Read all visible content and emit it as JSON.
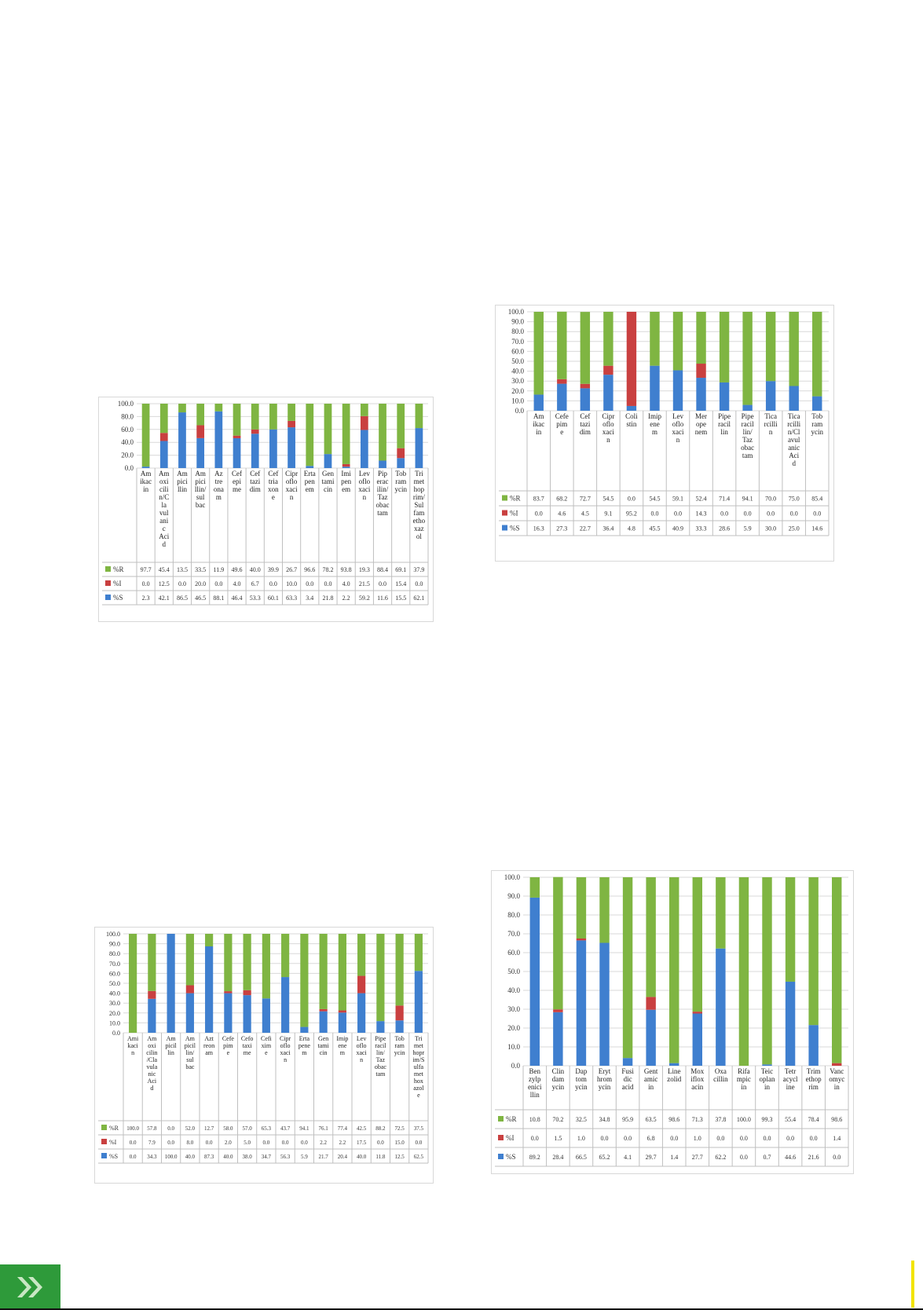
{
  "charts": [
    {
      "id": "c1",
      "yticks": [
        "0.0",
        "20.0",
        "40.0",
        "60.0",
        "80.0",
        "100.0"
      ],
      "categories": [
        "Am\nikac\nin",
        "Am\noxi\ncili\nn/C\nla\nvul\nani\nc\nAci\nd",
        "Am\npici\nllin",
        "Am\npici\nllin/\nsul\nbac",
        "Az\ntre\nona\nm",
        "Cef\nepi\nme",
        "Cef\ntazi\ndim",
        "Cef\ntria\nxon\ne",
        "Cipr\noflo\nxaci\nn",
        "Erta\npen\nem",
        "Gen\ntami\ncin",
        "Imi\npen\nem",
        "Lev\noflo\nxaci\nn",
        "Pip\nerac\nilin/\nTaz\nobac\ntam",
        "Tob\nram\nycin",
        "Tri\nmet\nhop\nrim/\nSul\nfam\netho\nxaz\nol"
      ],
      "series": [
        {
          "name": "%S",
          "color": "#3f7fcf",
          "values": [
            2.3,
            42.1,
            86.5,
            46.5,
            88.1,
            46.4,
            53.3,
            60.1,
            63.3,
            3.4,
            21.8,
            2.2,
            59.2,
            11.6,
            15.5,
            62.1
          ]
        },
        {
          "name": "%I",
          "color": "#c94040",
          "values": [
            0.0,
            12.5,
            0.0,
            20.0,
            0.0,
            4.0,
            6.7,
            0.0,
            10.0,
            0.0,
            0.0,
            4.0,
            21.5,
            0.0,
            15.4,
            0.0
          ]
        },
        {
          "name": "%R",
          "color": "#7fb542",
          "values": [
            97.7,
            45.4,
            13.5,
            33.5,
            11.9,
            49.6,
            40.0,
            39.9,
            26.7,
            96.6,
            78.2,
            93.8,
            19.3,
            88.4,
            69.1,
            37.9
          ]
        }
      ],
      "table_rows": [
        {
          "label": "%R",
          "values": [
            "97.7",
            "45.4",
            "13.5",
            "33.5",
            "11.9",
            "49.6",
            "40.0",
            "39.9",
            "26.7",
            "96.6",
            "78.2",
            "93.8",
            "19.3",
            "88.4",
            "69.1",
            "37.9"
          ]
        },
        {
          "label": "%I",
          "values": [
            "0.0",
            "12.5",
            "0.0",
            "20.0",
            "0.0",
            "4.0",
            "6.7",
            "0.0",
            "10.0",
            "0.0",
            "0.0",
            "4.0",
            "21.5",
            "0.0",
            "15.4",
            "0.0"
          ]
        },
        {
          "label": "%S",
          "values": [
            "2.3",
            "42.1",
            "86.5",
            "46.5",
            "88.1",
            "46.4",
            "53.3",
            "60.1",
            "63.3",
            "3.4",
            "21.8",
            "2.2",
            "59.2",
            "11.6",
            "15.5",
            "62.1"
          ]
        }
      ]
    },
    {
      "id": "c2",
      "yticks": [
        "0.0",
        "10.0",
        "20.0",
        "30.0",
        "40.0",
        "50.0",
        "60.0",
        "70.0",
        "80.0",
        "90.0",
        "100.0"
      ],
      "categories": [
        "Am\nikac\nin",
        "Cefe\npim\ne",
        "Cef\ntazi\ndim",
        "Cipr\noflo\nxaci\nn",
        "Coli\nstin",
        "Imip\nene\nm",
        "Lev\noflo\nxaci\nn",
        "Mer\nope\nnem",
        "Pipe\nracil\nlin",
        "Pipe\nracil\nlin/\nTaz\nobac\ntam",
        "Tica\nrcilli\nn",
        "Tica\nrcilli\nn/Cl\navul\nanic\nAci\nd",
        "Tob\nram\nycin"
      ],
      "series": [
        {
          "name": "%S",
          "color": "#3f7fcf",
          "values": [
            16.3,
            27.3,
            22.7,
            36.4,
            4.8,
            45.5,
            40.9,
            33.3,
            28.6,
            5.9,
            30.0,
            25.0,
            14.6
          ]
        },
        {
          "name": "%I",
          "color": "#c94040",
          "values": [
            0.0,
            4.6,
            4.5,
            9.1,
            95.2,
            0.0,
            0.0,
            14.3,
            0.0,
            0.0,
            0.0,
            0.0,
            0.0
          ]
        },
        {
          "name": "%R",
          "color": "#7fb542",
          "values": [
            83.7,
            68.2,
            72.7,
            54.5,
            0.0,
            54.5,
            59.1,
            52.4,
            71.4,
            94.1,
            70.0,
            75.0,
            85.4
          ]
        }
      ],
      "table_rows": [
        {
          "label": "%R",
          "values": [
            "83.7",
            "68.2",
            "72.7",
            "54.5",
            "0.0",
            "54.5",
            "59.1",
            "52.4",
            "71.4",
            "94.1",
            "70.0",
            "75.0",
            "85.4"
          ]
        },
        {
          "label": "%I",
          "values": [
            "0.0",
            "4.6",
            "4.5",
            "9.1",
            "95.2",
            "0.0",
            "0.0",
            "14.3",
            "0.0",
            "0.0",
            "0.0",
            "0.0",
            "0.0"
          ]
        },
        {
          "label": "%S",
          "values": [
            "16.3",
            "27.3",
            "22.7",
            "36.4",
            "4.8",
            "45.5",
            "40.9",
            "33.3",
            "28.6",
            "5.9",
            "30.0",
            "25.0",
            "14.6"
          ]
        }
      ]
    },
    {
      "id": "c3",
      "yticks": [
        "0.0",
        "10.0",
        "20.0",
        "30.0",
        "40.0",
        "50.0",
        "60.0",
        "70.0",
        "80.0",
        "90.0",
        "100.0"
      ],
      "categories": [
        "Ami\nkaci\nn",
        "Am\noxi\ncilin\n/Cla\nvula\nnic\nAci\nd",
        "Am\npicil\nlin",
        "Am\npicil\nlin/\nsul\nbac",
        "Azt\nreon\nam",
        "Cefe\npim\ne",
        "Cefo\ntaxi\nme",
        "Cefi\nxim\ne",
        "Cipr\noflo\nxaci\nn",
        "Erta\npene\nm",
        "Gen\ntami\ncin",
        "Imip\nene\nm",
        "Lev\noflo\nxaci\nn",
        "Pipe\nracil\nlin/\nTaz\nobac\ntam",
        "Tob\nram\nycin",
        "Tri\nmet\nhopr\nim/S\nulfa\nmet\nhox\nazol\ne"
      ],
      "series": [
        {
          "name": "%S",
          "color": "#3f7fcf",
          "values": [
            0.0,
            34.3,
            100.0,
            40.0,
            87.3,
            40.0,
            38.0,
            34.7,
            56.3,
            5.9,
            21.7,
            20.4,
            40.0,
            11.8,
            12.5,
            62.5
          ]
        },
        {
          "name": "%I",
          "color": "#c94040",
          "values": [
            0.0,
            7.9,
            0.0,
            8.0,
            0.0,
            2.0,
            5.0,
            0.0,
            0.0,
            0.0,
            2.2,
            2.2,
            17.5,
            0.0,
            15.0,
            0.0
          ]
        },
        {
          "name": "%R",
          "color": "#7fb542",
          "values": [
            100.0,
            57.8,
            0.0,
            52.0,
            12.7,
            58.0,
            57.0,
            65.3,
            43.7,
            94.1,
            76.1,
            77.4,
            42.5,
            88.2,
            72.5,
            37.5
          ]
        }
      ],
      "table_rows": [
        {
          "label": "%R",
          "values": [
            "100.0",
            "57.8",
            "0.0",
            "52.0",
            "12.7",
            "58.0",
            "57.0",
            "65.3",
            "43.7",
            "94.1",
            "76.1",
            "77.4",
            "42.5",
            "88.2",
            "72.5",
            "37.5"
          ]
        },
        {
          "label": "%I",
          "values": [
            "0.0",
            "7.9",
            "0.0",
            "8.0",
            "0.0",
            "2.0",
            "5.0",
            "0.0",
            "0.0",
            "0.0",
            "2.2",
            "2.2",
            "17.5",
            "0.0",
            "15.0",
            "0.0"
          ]
        },
        {
          "label": "%S",
          "values": [
            "0.0",
            "34.3",
            "100.0",
            "40.0",
            "87.3",
            "40.0",
            "38.0",
            "34.7",
            "56.3",
            "5.9",
            "21.7",
            "20.4",
            "40.0",
            "11.8",
            "12.5",
            "62.5"
          ]
        }
      ]
    },
    {
      "id": "c4",
      "yticks": [
        "0.0",
        "10.0",
        "20.0",
        "30.0",
        "40.0",
        "50.0",
        "60.0",
        "70.0",
        "80.0",
        "90.0",
        "100.0"
      ],
      "categories": [
        "Ben\nzylp\nenici\nllin",
        "Clin\ndam\nycin",
        "Dap\ntom\nycin",
        "Eryt\nhrom\nycin",
        "Fusi\ndic\nacid",
        "Gent\namic\nin",
        "Line\nzolid",
        "Mox\niflox\nacin",
        "Oxa\ncillin",
        "Rifa\nmpic\nin",
        "Teic\noplan\nin",
        "Tetr\nacycl\nine",
        "Trim\nethop\nrim",
        "Vanc\nomyc\nin"
      ],
      "series": [
        {
          "name": "%S",
          "color": "#3f7fcf",
          "values": [
            89.2,
            28.4,
            66.5,
            65.2,
            4.1,
            29.7,
            1.4,
            27.7,
            62.2,
            0.0,
            0.7,
            44.6,
            21.6,
            0.0
          ]
        },
        {
          "name": "%I",
          "color": "#c94040",
          "values": [
            0.0,
            1.5,
            1.0,
            0.0,
            0.0,
            6.8,
            0.0,
            1.0,
            0.0,
            0.0,
            0.0,
            0.0,
            0.0,
            1.4
          ]
        },
        {
          "name": "%R",
          "color": "#7fb542",
          "values": [
            10.8,
            70.2,
            32.5,
            34.8,
            95.9,
            63.5,
            98.6,
            71.3,
            37.8,
            100.0,
            99.3,
            55.4,
            78.4,
            98.6
          ]
        }
      ],
      "table_rows": [
        {
          "label": "%R",
          "values": [
            "10.8",
            "70.2",
            "32.5",
            "34.8",
            "95.9",
            "63.5",
            "98.6",
            "71.3",
            "37.8",
            "100.0",
            "99.3",
            "55.4",
            "78.4",
            "98.6"
          ]
        },
        {
          "label": "%I",
          "values": [
            "0.0",
            "1.5",
            "1.0",
            "0.0",
            "0.0",
            "6.8",
            "0.0",
            "1.0",
            "0.0",
            "0.0",
            "0.0",
            "0.0",
            "0.0",
            "1.4"
          ]
        },
        {
          "label": "%S",
          "values": [
            "89.2",
            "28.4",
            "66.5",
            "65.2",
            "4.1",
            "29.7",
            "1.4",
            "27.7",
            "62.2",
            "0.0",
            "0.7",
            "44.6",
            "21.6",
            "0.0"
          ]
        }
      ]
    }
  ],
  "chart_data": [
    {
      "type": "bar",
      "stacked": true,
      "ylim": [
        0,
        100
      ],
      "categories": [
        "Am ikac in",
        "Amoxicilin/Clavulanic Acid",
        "Ampicillin",
        "Ampicillin/sulbac",
        "Aztreonam",
        "Cefepime",
        "Ceftazidim",
        "Ceftriaxone",
        "Ciprofloxacin",
        "Ertapenem",
        "Gentamicin",
        "Imipenem",
        "Levofloxacin",
        "Piperacilin/Tazobactam",
        "Tobramycin",
        "Trimethoprim/Sulfamethoxazol"
      ],
      "series": [
        {
          "name": "%S",
          "values": [
            2.3,
            42.1,
            86.5,
            46.5,
            88.1,
            46.4,
            53.3,
            60.1,
            63.3,
            3.4,
            21.8,
            2.2,
            59.2,
            11.6,
            15.5,
            62.1
          ]
        },
        {
          "name": "%I",
          "values": [
            0.0,
            12.5,
            0.0,
            20.0,
            0.0,
            4.0,
            6.7,
            0.0,
            10.0,
            0.0,
            0.0,
            4.0,
            21.5,
            0.0,
            15.4,
            0.0
          ]
        },
        {
          "name": "%R",
          "values": [
            97.7,
            45.4,
            13.5,
            33.5,
            11.9,
            49.6,
            40.0,
            39.9,
            26.7,
            96.6,
            78.2,
            93.8,
            19.3,
            88.4,
            69.1,
            37.9
          ]
        }
      ]
    },
    {
      "type": "bar",
      "stacked": true,
      "ylim": [
        0,
        100
      ],
      "categories": [
        "Amikacin",
        "Cefepime",
        "Ceftazidim",
        "Ciprofloxacin",
        "Colistin",
        "Imipenem",
        "Levofloxacin",
        "Meropenem",
        "Piperacillin",
        "Piperacillin/Tazobactam",
        "Ticarcillin",
        "Ticarcillin/Clavulanic Acid",
        "Tobramycin"
      ],
      "series": [
        {
          "name": "%S",
          "values": [
            16.3,
            27.3,
            22.7,
            36.4,
            4.8,
            45.5,
            40.9,
            33.3,
            28.6,
            5.9,
            30.0,
            25.0,
            14.6
          ]
        },
        {
          "name": "%I",
          "values": [
            0.0,
            4.6,
            4.5,
            9.1,
            95.2,
            0.0,
            0.0,
            14.3,
            0.0,
            0.0,
            0.0,
            0.0,
            0.0
          ]
        },
        {
          "name": "%R",
          "values": [
            83.7,
            68.2,
            72.7,
            54.5,
            0.0,
            54.5,
            59.1,
            52.4,
            71.4,
            94.1,
            70.0,
            75.0,
            85.4
          ]
        }
      ]
    },
    {
      "type": "bar",
      "stacked": true,
      "ylim": [
        0,
        100
      ],
      "categories": [
        "Amikacin",
        "Amoxicilin/Clavulanic Acid",
        "Ampicillin",
        "Ampicillin/sulbac",
        "Aztreonam",
        "Cefepime",
        "Cefotaxime",
        "Cefixime",
        "Ciprofloxacin",
        "Ertapenem",
        "Gentamicin",
        "Imipenem",
        "Levofloxacin",
        "Piperacillin/Tazobactam",
        "Tobramycin",
        "Trimethoprim/Sulfamethoxazole"
      ],
      "series": [
        {
          "name": "%S",
          "values": [
            0.0,
            34.3,
            100.0,
            40.0,
            87.3,
            40.0,
            38.0,
            34.7,
            56.3,
            5.9,
            21.7,
            20.4,
            40.0,
            11.8,
            12.5,
            62.5
          ]
        },
        {
          "name": "%I",
          "values": [
            0.0,
            7.9,
            0.0,
            8.0,
            0.0,
            2.0,
            5.0,
            0.0,
            0.0,
            0.0,
            2.2,
            2.2,
            17.5,
            0.0,
            15.0,
            0.0
          ]
        },
        {
          "name": "%R",
          "values": [
            100.0,
            57.8,
            0.0,
            52.0,
            12.7,
            58.0,
            57.0,
            65.3,
            43.7,
            94.1,
            76.1,
            77.4,
            42.5,
            88.2,
            72.5,
            37.5
          ]
        }
      ]
    },
    {
      "type": "bar",
      "stacked": true,
      "ylim": [
        0,
        100
      ],
      "categories": [
        "Benzylpenicillin",
        "Clindamycin",
        "Daptomycin",
        "Erythromycin",
        "Fusidic acid",
        "Gentamicin",
        "Linezolid",
        "Moxifloxacin",
        "Oxacillin",
        "Rifampicin",
        "Teicoplanin",
        "Tetracycline",
        "Trimethoprim",
        "Vancomycin"
      ],
      "series": [
        {
          "name": "%S",
          "values": [
            89.2,
            28.4,
            66.5,
            65.2,
            4.1,
            29.7,
            1.4,
            27.7,
            62.2,
            0.0,
            0.7,
            44.6,
            21.6,
            0.0
          ]
        },
        {
          "name": "%I",
          "values": [
            0.0,
            1.5,
            1.0,
            0.0,
            0.0,
            6.8,
            0.0,
            1.0,
            0.0,
            0.0,
            0.0,
            0.0,
            0.0,
            1.4
          ]
        },
        {
          "name": "%R",
          "values": [
            10.8,
            70.2,
            32.5,
            34.8,
            95.9,
            63.5,
            98.6,
            71.3,
            37.8,
            100.0,
            99.3,
            55.4,
            78.4,
            98.6
          ]
        }
      ]
    }
  ],
  "footer": {
    "icon": "double-chevron-icon",
    "color": "#2e9a3a"
  }
}
